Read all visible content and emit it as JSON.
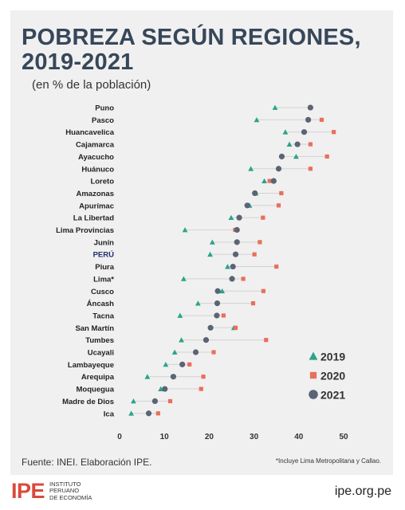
{
  "header": {
    "title_line1": "POBREZA SEGÚN REGIONES,",
    "title_line2": "2019-2021",
    "subtitle": "(en % de la población)"
  },
  "footer": {
    "source": "Fuente: INEI. Elaboración IPE.",
    "note": "*Incluye Lima Metropolitana y Callao.",
    "logo_mark": "IPE",
    "logo_lines": [
      "INSTITUTO",
      "PERUANO",
      "DE ECONOMÍA"
    ],
    "website": "ipe.org.pe"
  },
  "colors": {
    "2019": "#2aa48a",
    "2020": "#e8705a",
    "2021": "#5b6474",
    "highlight_label": "#1f2f6b",
    "title": "#37475a"
  },
  "chart_data": {
    "type": "dot",
    "title": "POBREZA SEGÚN REGIONES, 2019-2021",
    "xlabel": "",
    "ylabel": "",
    "xlim": [
      0,
      50
    ],
    "xticks": [
      0,
      10,
      20,
      30,
      40,
      50
    ],
    "grid": false,
    "legend_position": "bottom-right",
    "highlight": "PERÚ",
    "categories": [
      "Puno",
      "Pasco",
      "Huancavelica",
      "Cajamarca",
      "Ayacucho",
      "Huánuco",
      "Loreto",
      "Amazonas",
      "Apurímac",
      "La Libertad",
      "Lima Provincias",
      "Junín",
      "PERÚ",
      "Piura",
      "Lima*",
      "Cusco",
      "Áncash",
      "Tacna",
      "San Martín",
      "Tumbes",
      "Ucayali",
      "Lambayeque",
      "Arequipa",
      "Moquegua",
      "Madre de Dios",
      "Ica"
    ],
    "series": [
      {
        "name": "2019",
        "marker": "triangle",
        "values": [
          34.7,
          30.6,
          37.0,
          37.9,
          39.4,
          29.3,
          32.3,
          30.4,
          29.0,
          24.9,
          14.6,
          20.7,
          20.2,
          24.1,
          14.3,
          22.9,
          17.5,
          13.5,
          25.5,
          13.8,
          12.3,
          10.3,
          6.2,
          9.2,
          3.1,
          2.6
        ]
      },
      {
        "name": "2020",
        "marker": "square",
        "values": [
          42.5,
          45.1,
          47.8,
          42.6,
          46.3,
          42.6,
          33.5,
          36.1,
          35.5,
          32.0,
          25.8,
          31.3,
          30.1,
          35.0,
          27.6,
          32.1,
          29.8,
          23.2,
          25.9,
          32.7,
          21.0,
          15.6,
          18.7,
          18.2,
          11.3,
          8.6
        ]
      },
      {
        "name": "2021",
        "marker": "circle",
        "values": [
          42.6,
          42.1,
          41.2,
          39.7,
          36.2,
          35.5,
          34.4,
          30.2,
          28.5,
          26.7,
          26.2,
          26.2,
          25.9,
          25.3,
          25.1,
          21.9,
          21.8,
          21.7,
          20.3,
          19.3,
          17.0,
          14.0,
          12.0,
          10.1,
          7.9,
          6.5
        ]
      }
    ]
  }
}
